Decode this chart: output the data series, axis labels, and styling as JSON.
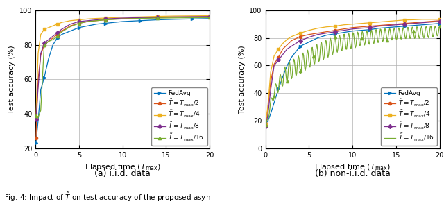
{
  "left_plot": {
    "subtitle": "(a) i.i.d. data",
    "xlabel": "Elapsed time ($T_{\\mathrm{max}}$)",
    "ylabel": "Test accuracy (%)",
    "xlim": [
      0,
      20
    ],
    "ylim": [
      20,
      100
    ],
    "yticks": [
      20,
      40,
      60,
      80,
      100
    ],
    "xticks": [
      0,
      5,
      10,
      15,
      20
    ],
    "series": {
      "FedAvg": {
        "color": "#0072BD",
        "x": [
          0.05,
          0.3,
          0.6,
          1.0,
          1.5,
          2.0,
          2.5,
          3.0,
          4.0,
          5.0,
          6.0,
          7.0,
          8.0,
          9.0,
          10.0,
          12.0,
          14.0,
          16.0,
          18.0,
          20.0
        ],
        "y": [
          23,
          36,
          54,
          61,
          72,
          80,
          84,
          86,
          88,
          90,
          91,
          92,
          92.5,
          93,
          93.5,
          94,
          94.5,
          94.8,
          95.0,
          95.2
        ]
      },
      "T_half": {
        "color": "#D95319",
        "x": [
          0.05,
          0.3,
          0.6,
          1.0,
          1.5,
          2.0,
          2.5,
          3.0,
          4.0,
          5.0,
          6.0,
          7.0,
          8.0,
          10.0,
          12.0,
          14.0,
          16.0,
          18.0,
          20.0
        ],
        "y": [
          26,
          60,
          74,
          80,
          82,
          84,
          86,
          88,
          91,
          92.5,
          93.5,
          94,
          94.5,
          95.2,
          95.5,
          95.8,
          96.0,
          96.2,
          96.3
        ]
      },
      "T_quarter": {
        "color": "#EDB120",
        "x": [
          0.05,
          0.3,
          0.6,
          1.0,
          1.5,
          2.0,
          2.5,
          3.0,
          4.0,
          5.0,
          6.0,
          7.0,
          8.0,
          10.0,
          12.0,
          14.0,
          16.0,
          18.0,
          20.0
        ],
        "y": [
          38,
          75,
          86,
          89,
          90,
          91,
          92,
          93,
          94,
          94.5,
          95,
          95.3,
          95.5,
          96.0,
          96.2,
          96.5,
          96.7,
          96.8,
          96.9
        ]
      },
      "T_eighth": {
        "color": "#7E2F8E",
        "x": [
          0.05,
          0.3,
          0.6,
          1.0,
          1.5,
          2.0,
          2.5,
          3.0,
          4.0,
          5.0,
          6.0,
          7.0,
          8.0,
          10.0,
          12.0,
          14.0,
          16.0,
          18.0,
          20.0
        ],
        "y": [
          37,
          55,
          75,
          81,
          83,
          85,
          87,
          89,
          92,
          93.5,
          94,
          94.5,
          95,
          95.5,
          95.8,
          96.0,
          96.2,
          96.3,
          96.4
        ]
      },
      "T_sixteenth": {
        "color": "#77AC30",
        "x": [
          0.05,
          0.3,
          0.6,
          1.0,
          1.5,
          2.0,
          2.5,
          3.0,
          4.0,
          5.0,
          6.0,
          7.0,
          8.0,
          10.0,
          12.0,
          14.0,
          16.0,
          18.0,
          20.0
        ],
        "y": [
          39,
          38,
          42,
          80,
          82,
          83,
          85,
          87.5,
          90.5,
          92.5,
          93.5,
          94.0,
          94.5,
          95.0,
          95.3,
          95.5,
          95.6,
          95.7,
          95.8
        ]
      }
    }
  },
  "right_plot": {
    "subtitle": "(b) non-i.i.d. data",
    "xlabel": "Elapsed time ($T_{\\mathrm{max}}$)",
    "ylabel": "Test accuracy (%)",
    "xlim": [
      0,
      20
    ],
    "ylim": [
      0,
      100
    ],
    "yticks": [
      0,
      20,
      40,
      60,
      80,
      100
    ],
    "xticks": [
      0,
      5,
      10,
      15,
      20
    ],
    "series": {
      "FedAvg": {
        "color": "#0072BD",
        "x": [
          0.05,
          0.3,
          0.6,
          1.0,
          1.5,
          2.0,
          2.5,
          3.0,
          4.0,
          5.0,
          6.0,
          7.0,
          8.0,
          9.0,
          10.0,
          11.0,
          12.0,
          13.0,
          14.0,
          15.0,
          16.0,
          17.0,
          18.0,
          19.0,
          20.0
        ],
        "y": [
          18,
          20,
          25,
          33,
          43,
          52,
          60,
          66,
          74,
          77,
          80,
          82,
          83,
          84,
          85,
          85.5,
          86,
          87,
          87.5,
          88,
          88.5,
          89,
          89.5,
          90,
          90.5
        ]
      },
      "T_half": {
        "color": "#D95319",
        "x": [
          0.05,
          0.3,
          0.6,
          1.0,
          1.5,
          2.0,
          2.5,
          3.0,
          4.0,
          5.0,
          6.0,
          7.0,
          8.0,
          9.0,
          10.0,
          11.0,
          12.0,
          13.0,
          14.0,
          15.0,
          16.0,
          17.0,
          18.0,
          19.0,
          20.0
        ],
        "y": [
          18,
          30,
          48,
          61,
          66,
          72,
          75,
          78,
          81,
          82.5,
          83.5,
          84.5,
          85.5,
          86.5,
          87.5,
          88,
          88.5,
          89,
          89.5,
          90,
          90.5,
          91,
          91.5,
          92,
          92.5
        ]
      },
      "T_quarter": {
        "color": "#EDB120",
        "x": [
          0.05,
          0.3,
          0.6,
          1.0,
          1.5,
          2.0,
          2.5,
          3.0,
          4.0,
          5.0,
          6.0,
          7.0,
          8.0,
          9.0,
          10.0,
          11.0,
          12.0,
          13.0,
          14.0,
          15.0,
          16.0,
          17.0,
          18.0,
          19.0,
          20.0
        ],
        "y": [
          17,
          32,
          55,
          67,
          72,
          76,
          79,
          81,
          83.5,
          85.5,
          87,
          88,
          88.5,
          89.5,
          90,
          90.5,
          91,
          91.5,
          92,
          92.5,
          93,
          93.2,
          93.5,
          93.5,
          93.5
        ]
      },
      "T_eighth": {
        "color": "#7E2F8E",
        "x": [
          0.05,
          0.3,
          0.6,
          1.0,
          1.5,
          2.0,
          2.5,
          3.0,
          4.0,
          5.0,
          6.0,
          7.0,
          8.0,
          9.0,
          10.0,
          11.0,
          12.0,
          13.0,
          14.0,
          15.0,
          16.0,
          17.0,
          18.0,
          19.0,
          20.0
        ],
        "y": [
          16,
          25,
          42,
          60,
          64,
          68,
          72,
          74,
          78,
          80.5,
          82.5,
          83.5,
          84.5,
          85.5,
          86.5,
          87,
          87.5,
          88.5,
          89,
          89.5,
          90,
          90.5,
          91,
          91.5,
          92
        ]
      },
      "T_sixteenth_base": {
        "color": "#77AC30",
        "x": [
          0.05,
          0.3,
          0.6,
          1.0,
          1.5,
          2.0,
          2.5,
          3.0,
          3.5,
          4.0,
          4.5,
          5.0,
          5.5,
          6.0,
          7.0,
          8.0,
          9.0,
          10.0,
          11.0,
          12.0,
          13.0,
          14.0,
          15.0,
          16.0,
          17.0,
          18.0,
          19.0,
          20.0
        ],
        "y_base": [
          17,
          22,
          32,
          40,
          46,
          51,
          55,
          57,
          59,
          61,
          63,
          65,
          67,
          69,
          72,
          75,
          77,
          78,
          79.5,
          80.5,
          81.5,
          82.5,
          83,
          83.5,
          83.8,
          84,
          84.5,
          85
        ],
        "noise_amp": [
          0,
          2,
          3,
          5,
          6,
          7,
          8,
          8,
          8,
          8,
          8,
          8,
          8,
          8,
          8,
          7,
          7,
          7,
          6,
          6,
          6,
          5,
          5,
          5,
          5,
          5,
          5,
          4
        ]
      }
    }
  },
  "fig_caption": "Fig. 4: Impact of $\\tilde{T}$ on test accuracy of the proposed asyn",
  "background_color": "#ffffff",
  "grid_color": "#b0b0b0",
  "legend_fontsize": 6.5,
  "axis_fontsize": 8,
  "subtitle_fontsize": 9,
  "marker_size": 3,
  "linewidth": 0.9
}
